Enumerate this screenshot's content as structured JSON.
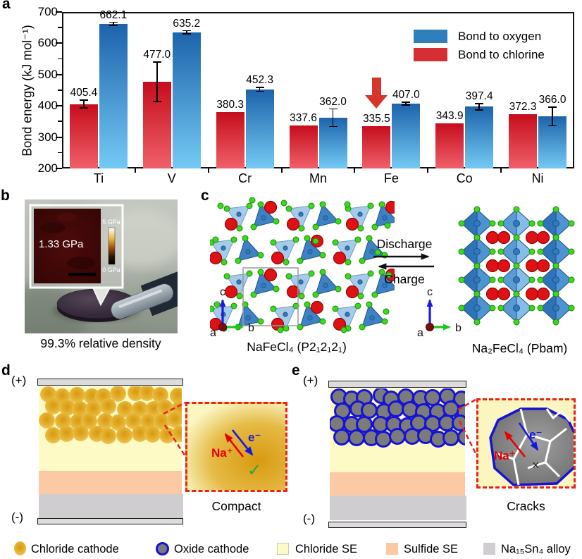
{
  "figure_labels": {
    "a": "a",
    "b": "b",
    "c": "c",
    "d": "d",
    "e": "e"
  },
  "chart_data": {
    "type": "bar",
    "categories": [
      "Ti",
      "V",
      "Cr",
      "Mn",
      "Fe",
      "Co",
      "Ni"
    ],
    "series": [
      {
        "name": "Bond to oxygen",
        "color": "#2e7fbc",
        "gradient": [
          "#1d63ab",
          "#74caf4"
        ],
        "values": [
          662.1,
          635.2,
          452.3,
          362.0,
          407.0,
          397.4,
          366.0
        ],
        "errors": [
          5,
          5,
          6,
          28,
          5,
          10,
          30
        ]
      },
      {
        "name": "Bond to chlorine",
        "color": "#d62e35",
        "gradient": [
          "#c60d1c",
          "#f0606a"
        ],
        "values": [
          405.4,
          477.0,
          380.3,
          337.6,
          335.5,
          343.9,
          372.3
        ],
        "errors": [
          12,
          63,
          0,
          0,
          0,
          0,
          0
        ]
      }
    ],
    "ylabel": "Bond energy (kJ mol⁻¹)",
    "ylim": [
      200,
      700
    ],
    "yticks": [
      200,
      300,
      400,
      500,
      600,
      700
    ],
    "legend_position": "top-right",
    "annotation": {
      "type": "red-down-arrow",
      "category": "Fe",
      "target_series": "Bond to chlorine"
    }
  },
  "panel_b": {
    "inset_pressure": "1.33 GPa",
    "scale_max": "5 GPa",
    "scale_min": "0 GPa",
    "caption": "99.3% relative density"
  },
  "panel_c": {
    "left_formula": "NaFeCl₄ (P2₁2₁2₁)",
    "right_formula": "Na₂FeCl₄ (Pbam)",
    "forward_label": "Discharge",
    "reverse_label": "Charge",
    "axis": {
      "a": "a",
      "b": "b",
      "c": "c"
    }
  },
  "panel_d": {
    "positive": "(+)",
    "negative": "(-)",
    "ion_label": "Na⁺",
    "electron_label": "e⁻",
    "status_icon": "✓",
    "caption": "Compact"
  },
  "panel_e": {
    "positive": "(+)",
    "negative": "(-)",
    "ion_label": "Na⁺",
    "electron_label": "e⁻",
    "status_icon": "×",
    "caption": "Cracks"
  },
  "bottom_legend": {
    "items": [
      {
        "label": "Chloride cathode"
      },
      {
        "label": "Oxide cathode"
      },
      {
        "label": "Chloride SE"
      },
      {
        "label": "Sulfide SE"
      },
      {
        "label": "Na₁₅Sn₄ alloy"
      }
    ]
  },
  "colors": {
    "oxygen_bar_top": "#1d63ab",
    "oxygen_bar_bottom": "#74caf4",
    "chlorine_bar_top": "#c60d1c",
    "chlorine_bar_bottom": "#f0606a",
    "chloride_se": "#fdfac5",
    "sulfide_se": "#fbcaa5",
    "alloy_layer": "#cfcdd0",
    "oxide_particle": "#7b7b7b",
    "oxide_ring": "#1712d6",
    "chloride_particle": "#e2a81f",
    "highlight_red": "#e8211c"
  }
}
